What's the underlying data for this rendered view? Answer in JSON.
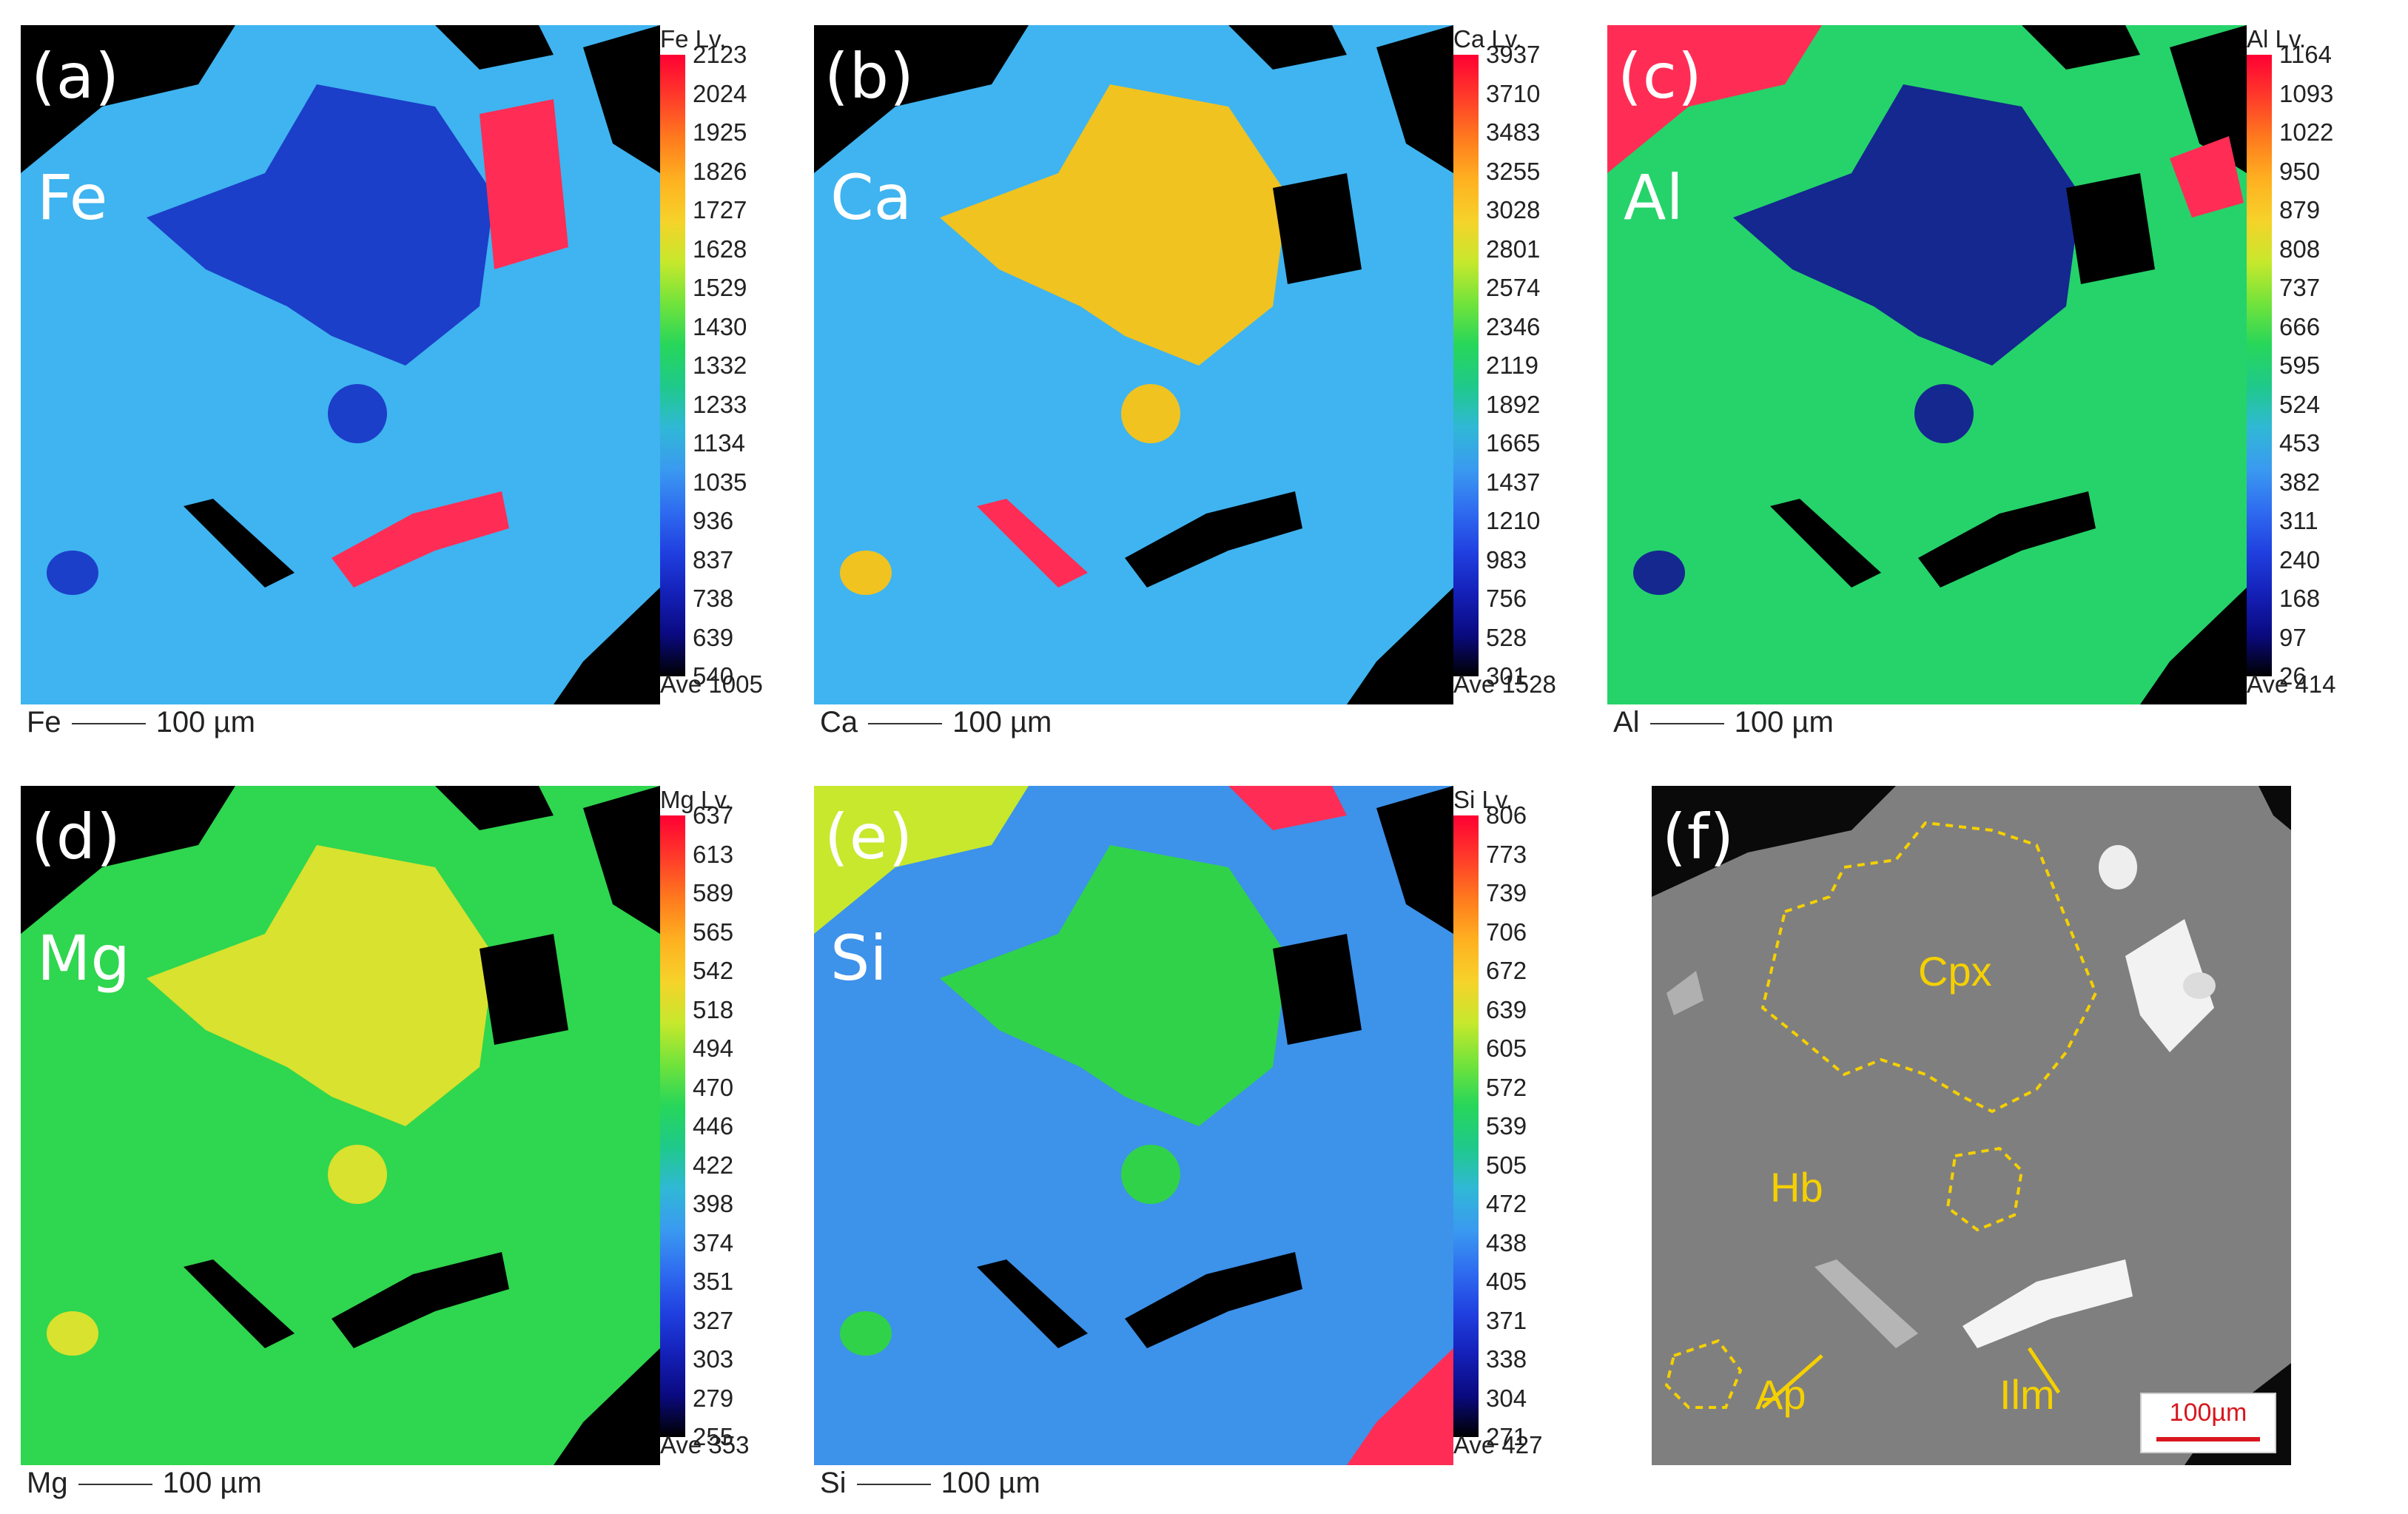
{
  "panels": [
    {
      "id": "a",
      "letter": "(a)",
      "element": "Fe",
      "lv_label": "Fe Lv.",
      "ave": "Ave 1005",
      "ticks": [
        "2123",
        "2024",
        "1925",
        "1826",
        "1727",
        "1628",
        "1529",
        "1430",
        "1332",
        "1233",
        "1134",
        "1035",
        "936",
        "837",
        "738",
        "639",
        "540"
      ],
      "scale_element": "Fe",
      "scale_text": "100 µm",
      "matrix_color": "#3fb4f0",
      "grain_color": "#1b3fc9",
      "ellipse_color": "#ff2d55"
    },
    {
      "id": "b",
      "letter": "(b)",
      "element": "Ca",
      "lv_label": "Ca Lv.",
      "ave": "Ave 1528",
      "ticks": [
        "3937",
        "3710",
        "3483",
        "3255",
        "3028",
        "2801",
        "2574",
        "2346",
        "2119",
        "1892",
        "1665",
        "1437",
        "1210",
        "983",
        "756",
        "528",
        "301"
      ],
      "scale_element": "Ca",
      "scale_text": "100 µm",
      "matrix_color": "#3fb4f0",
      "grain_color": "#f0c321",
      "ellipse_color": "#ff2d55"
    },
    {
      "id": "c",
      "letter": "(c)",
      "element": "Al",
      "lv_label": "Al Lv.",
      "ave": "Ave 414",
      "ticks": [
        "1164",
        "1093",
        "1022",
        "950",
        "879",
        "808",
        "737",
        "666",
        "595",
        "524",
        "453",
        "382",
        "311",
        "240",
        "168",
        "97",
        "26"
      ],
      "scale_element": "Al",
      "scale_text": "100 µm",
      "matrix_color": "#25d36a",
      "grain_color": "#14288f",
      "ellipse_color": "#000000"
    },
    {
      "id": "d",
      "letter": "(d)",
      "element": "Mg",
      "lv_label": "Mg Lv.",
      "ave": "Ave 353",
      "ticks": [
        "637",
        "613",
        "589",
        "565",
        "542",
        "518",
        "494",
        "470",
        "446",
        "422",
        "398",
        "374",
        "351",
        "327",
        "303",
        "279",
        "255"
      ],
      "scale_element": "Mg",
      "scale_text": "100 µm",
      "matrix_color": "#2fd64f",
      "grain_color": "#d9e22e",
      "ellipse_color": "#000000"
    },
    {
      "id": "e",
      "letter": "(e)",
      "element": "Si",
      "lv_label": "Si Lv.",
      "ave": "Ave 427",
      "ticks": [
        "806",
        "773",
        "739",
        "706",
        "672",
        "639",
        "605",
        "572",
        "539",
        "505",
        "472",
        "438",
        "405",
        "371",
        "338",
        "304",
        "271"
      ],
      "scale_element": "Si",
      "scale_text": "100 µm",
      "matrix_color": "#3d92ea",
      "grain_color": "#30d24a",
      "ellipse_color": "#000000"
    }
  ],
  "bse": {
    "letter": "(f)",
    "labels": {
      "cpx": "Cpx",
      "hb": "Hb",
      "ap": "Ap",
      "ilm": "Ilm"
    },
    "scalebar": "100µm",
    "annotation_color": "#f5d000",
    "scalebar_color": "#d9161e"
  },
  "colormap": [
    "#ff0033",
    "#ff3a2a",
    "#ff7a1e",
    "#ffb020",
    "#f6d22a",
    "#c7e82c",
    "#72e33b",
    "#27d65a",
    "#1fc98a",
    "#30b8d6",
    "#3a9af0",
    "#2f6cf0",
    "#2040e0",
    "#1420b8",
    "#0a0a80",
    "#000000"
  ]
}
